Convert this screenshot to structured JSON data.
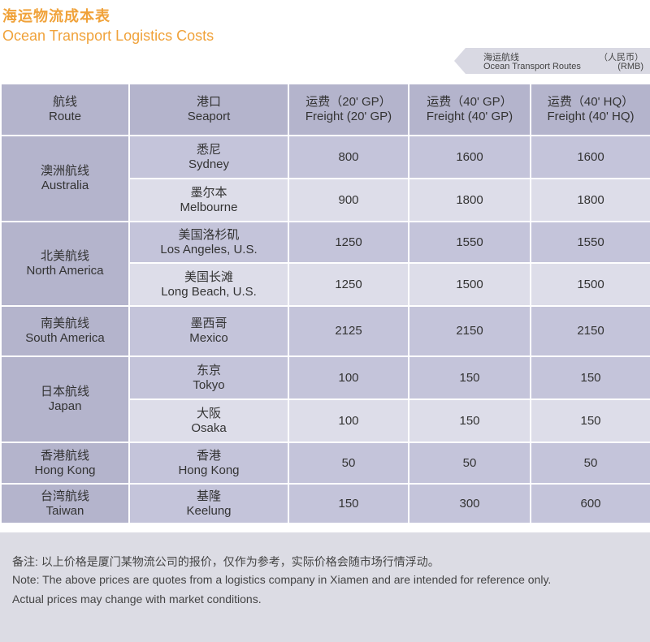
{
  "title": {
    "cn": "海运物流成本表",
    "en": "Ocean Transport Logistics Costs"
  },
  "route_label": {
    "cn": "海运航线",
    "en": "Ocean Transport Routes",
    "currency_cn": "（人民币）",
    "currency_en": "(RMB)"
  },
  "table": {
    "headers": [
      {
        "cn": "航线",
        "en": "Route"
      },
      {
        "cn": "港口",
        "en": "Seaport"
      },
      {
        "cn": "运费（20' GP）",
        "en": "Freight (20' GP)"
      },
      {
        "cn": "运费（40' GP）",
        "en": "Freight (40' GP)"
      },
      {
        "cn": "运费（40' HQ）",
        "en": "Freight (40' HQ)"
      }
    ],
    "groups": [
      {
        "route_cn": "澳洲航线",
        "route_en": "Australia",
        "ports": [
          {
            "cn": "悉尼",
            "en": "Sydney",
            "gp20": "800",
            "gp40": "1600",
            "hq40": "1600"
          },
          {
            "cn": "墨尔本",
            "en": "Melbourne",
            "gp20": "900",
            "gp40": "1800",
            "hq40": "1800"
          }
        ]
      },
      {
        "route_cn": "北美航线",
        "route_en": "North America",
        "ports": [
          {
            "cn": "美国洛杉矶",
            "en": "Los Angeles, U.S.",
            "gp20": "1250",
            "gp40": "1550",
            "hq40": "1550"
          },
          {
            "cn": "美国长滩",
            "en": "Long Beach, U.S.",
            "gp20": "1250",
            "gp40": "1500",
            "hq40": "1500"
          }
        ]
      },
      {
        "route_cn": "南美航线",
        "route_en": "South America",
        "ports": [
          {
            "cn": "墨西哥",
            "en": "Mexico",
            "gp20": "2125",
            "gp40": "2150",
            "hq40": "2150"
          }
        ]
      },
      {
        "route_cn": "日本航线",
        "route_en": "Japan",
        "ports": [
          {
            "cn": "东京",
            "en": "Tokyo",
            "gp20": "100",
            "gp40": "150",
            "hq40": "150"
          },
          {
            "cn": "大阪",
            "en": "Osaka",
            "gp20": "100",
            "gp40": "150",
            "hq40": "150"
          }
        ]
      },
      {
        "route_cn": "香港航线",
        "route_en": "Hong Kong",
        "ports": [
          {
            "cn": "香港",
            "en": "Hong Kong",
            "gp20": "50",
            "gp40": "50",
            "hq40": "50"
          }
        ]
      },
      {
        "route_cn": "台湾航线",
        "route_en": "Taiwan",
        "ports": [
          {
            "cn": "基隆",
            "en": "Keelung",
            "gp20": "150",
            "gp40": "300",
            "hq40": "600"
          }
        ]
      }
    ]
  },
  "note": {
    "cn": "备注: 以上价格是厦门某物流公司的报价，仅作为参考，实际价格会随市场行情浮动。",
    "en_line1": "Note: The above prices are quotes from a logistics company in Xiamen and are intended for reference only.",
    "en_line2": "Actual prices may change with market conditions."
  },
  "colors": {
    "title": "#f0a23a",
    "header_bg": "#b4b4cc",
    "row_odd": "#c4c4da",
    "row_even": "#dddde9",
    "note_bg": "#dcdce4"
  }
}
